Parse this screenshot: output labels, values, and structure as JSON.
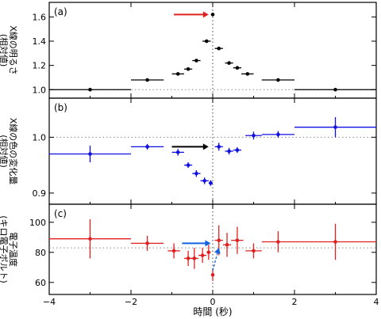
{
  "chart_data": [
    {
      "type": "scatter",
      "panel_label": "(a)",
      "ylabel": "X線の明るさ",
      "ylabel_sub": "(相対値)",
      "ylim": [
        0.93,
        1.72
      ],
      "yticks": [
        1.0,
        1.2,
        1.4,
        1.6
      ],
      "ytick_labels": [
        "1.0",
        "1.2",
        "1.4",
        "1.6"
      ],
      "reference_line": 1.0,
      "series": [
        {
          "color": "#000000",
          "points": [
            {
              "x": -3.0,
              "xerr": 1.0,
              "y": 1.0
            },
            {
              "x": -1.6,
              "xerr": 0.4,
              "y": 1.08
            },
            {
              "x": -0.85,
              "xerr": 0.15,
              "y": 1.13
            },
            {
              "x": -0.6,
              "xerr": 0.1,
              "y": 1.17
            },
            {
              "x": -0.4,
              "xerr": 0.1,
              "y": 1.24
            },
            {
              "x": -0.15,
              "xerr": 0.1,
              "y": 1.4
            },
            {
              "x": 0.0,
              "xerr": 0.0,
              "y": 1.62
            },
            {
              "x": 0.15,
              "xerr": 0.1,
              "y": 1.34
            },
            {
              "x": 0.4,
              "xerr": 0.1,
              "y": 1.22
            },
            {
              "x": 0.6,
              "xerr": 0.1,
              "y": 1.18
            },
            {
              "x": 0.85,
              "xerr": 0.15,
              "y": 1.13
            },
            {
              "x": 1.6,
              "xerr": 0.4,
              "y": 1.08
            },
            {
              "x": 3.0,
              "xerr": 1.0,
              "y": 1.0
            }
          ]
        }
      ],
      "arrow": {
        "color": "#e02020",
        "from_x": -0.95,
        "to_x": -0.1,
        "y": 1.62
      }
    },
    {
      "type": "scatter",
      "panel_label": "(b)",
      "ylabel": "X線の色の変化量",
      "ylabel_sub": "(相対値)",
      "ylim": [
        0.88,
        1.07
      ],
      "yticks": [
        0.9,
        1.0
      ],
      "ytick_labels": [
        "0.9",
        "1.0"
      ],
      "reference_line": 1.0,
      "series": [
        {
          "color": "#1010e0",
          "points": [
            {
              "x": -3.0,
              "xerr": 1.0,
              "y": 0.97,
              "yerr": 0.015
            },
            {
              "x": -1.6,
              "xerr": 0.4,
              "y": 0.983,
              "yerr": 0.005
            },
            {
              "x": -0.85,
              "xerr": 0.15,
              "y": 0.973,
              "yerr": 0.006
            },
            {
              "x": -0.6,
              "xerr": 0.1,
              "y": 0.95,
              "yerr": 0.005
            },
            {
              "x": -0.4,
              "xerr": 0.1,
              "y": 0.935,
              "yerr": 0.006
            },
            {
              "x": -0.2,
              "xerr": 0.1,
              "y": 0.922,
              "yerr": 0.006
            },
            {
              "x": -0.05,
              "xerr": 0.05,
              "y": 0.918,
              "yerr": 0.005
            },
            {
              "x": 0.15,
              "xerr": 0.1,
              "y": 0.983,
              "yerr": 0.007
            },
            {
              "x": 0.4,
              "xerr": 0.1,
              "y": 0.975,
              "yerr": 0.006
            },
            {
              "x": 0.6,
              "xerr": 0.1,
              "y": 0.977,
              "yerr": 0.005
            },
            {
              "x": 1.0,
              "xerr": 0.2,
              "y": 1.003,
              "yerr": 0.007
            },
            {
              "x": 1.6,
              "xerr": 0.4,
              "y": 1.005,
              "yerr": 0.006
            },
            {
              "x": 3.0,
              "xerr": 1.0,
              "y": 1.018,
              "yerr": 0.018
            }
          ]
        }
      ],
      "arrow": {
        "color": "#000000",
        "from_x": -1.0,
        "to_x": -0.1,
        "y": 0.983
      }
    },
    {
      "type": "scatter",
      "panel_label": "(c)",
      "ylabel": "電子温度",
      "ylabel_sub": "(キロ電子ボルト)",
      "ylim": [
        52,
        112
      ],
      "yticks": [
        60,
        80,
        100
      ],
      "ytick_labels": [
        "60",
        "80",
        "100"
      ],
      "reference_line": 83,
      "series": [
        {
          "color": "#e02020",
          "points": [
            {
              "x": -3.0,
              "xerr": 1.0,
              "y": 89,
              "yerr": 13
            },
            {
              "x": -1.6,
              "xerr": 0.4,
              "y": 86,
              "yerr": 5
            },
            {
              "x": -0.95,
              "xerr": 0.15,
              "y": 81,
              "yerr": 5
            },
            {
              "x": -0.6,
              "xerr": 0.1,
              "y": 76,
              "yerr": 5
            },
            {
              "x": -0.45,
              "xerr": 0.1,
              "y": 76,
              "yerr": 7
            },
            {
              "x": -0.25,
              "xerr": 0.1,
              "y": 78,
              "yerr": 5
            },
            {
              "x": -0.1,
              "xerr": 0.05,
              "y": 80,
              "yerr": 5
            },
            {
              "x": 0.0,
              "xerr": 0.0,
              "y": 65,
              "yerr": 4
            },
            {
              "x": 0.15,
              "xerr": 0.1,
              "y": 88,
              "yerr": 10
            },
            {
              "x": 0.35,
              "xerr": 0.1,
              "y": 85,
              "yerr": 8
            },
            {
              "x": 0.6,
              "xerr": 0.15,
              "y": 88,
              "yerr": 9
            },
            {
              "x": 1.0,
              "xerr": 0.2,
              "y": 81,
              "yerr": 5
            },
            {
              "x": 1.6,
              "xerr": 0.4,
              "y": 87,
              "yerr": 7
            },
            {
              "x": 3.0,
              "xerr": 1.0,
              "y": 87,
              "yerr": 12
            }
          ]
        }
      ],
      "arrow": {
        "color": "#1060e0",
        "from_x": -0.75,
        "to_x": -0.05,
        "y": 86
      },
      "arrow_dashed": {
        "color": "#1060e0",
        "from": [
          0.0,
          68
        ],
        "to": [
          0.15,
          83
        ]
      }
    }
  ],
  "x_axis": {
    "xlim": [
      -4,
      4
    ],
    "xticks": [
      -4,
      -2,
      0,
      2,
      4
    ],
    "xtick_labels": [
      "−4",
      "−2",
      "0",
      "2",
      "4"
    ],
    "xlabel": "時間 (秒)"
  }
}
